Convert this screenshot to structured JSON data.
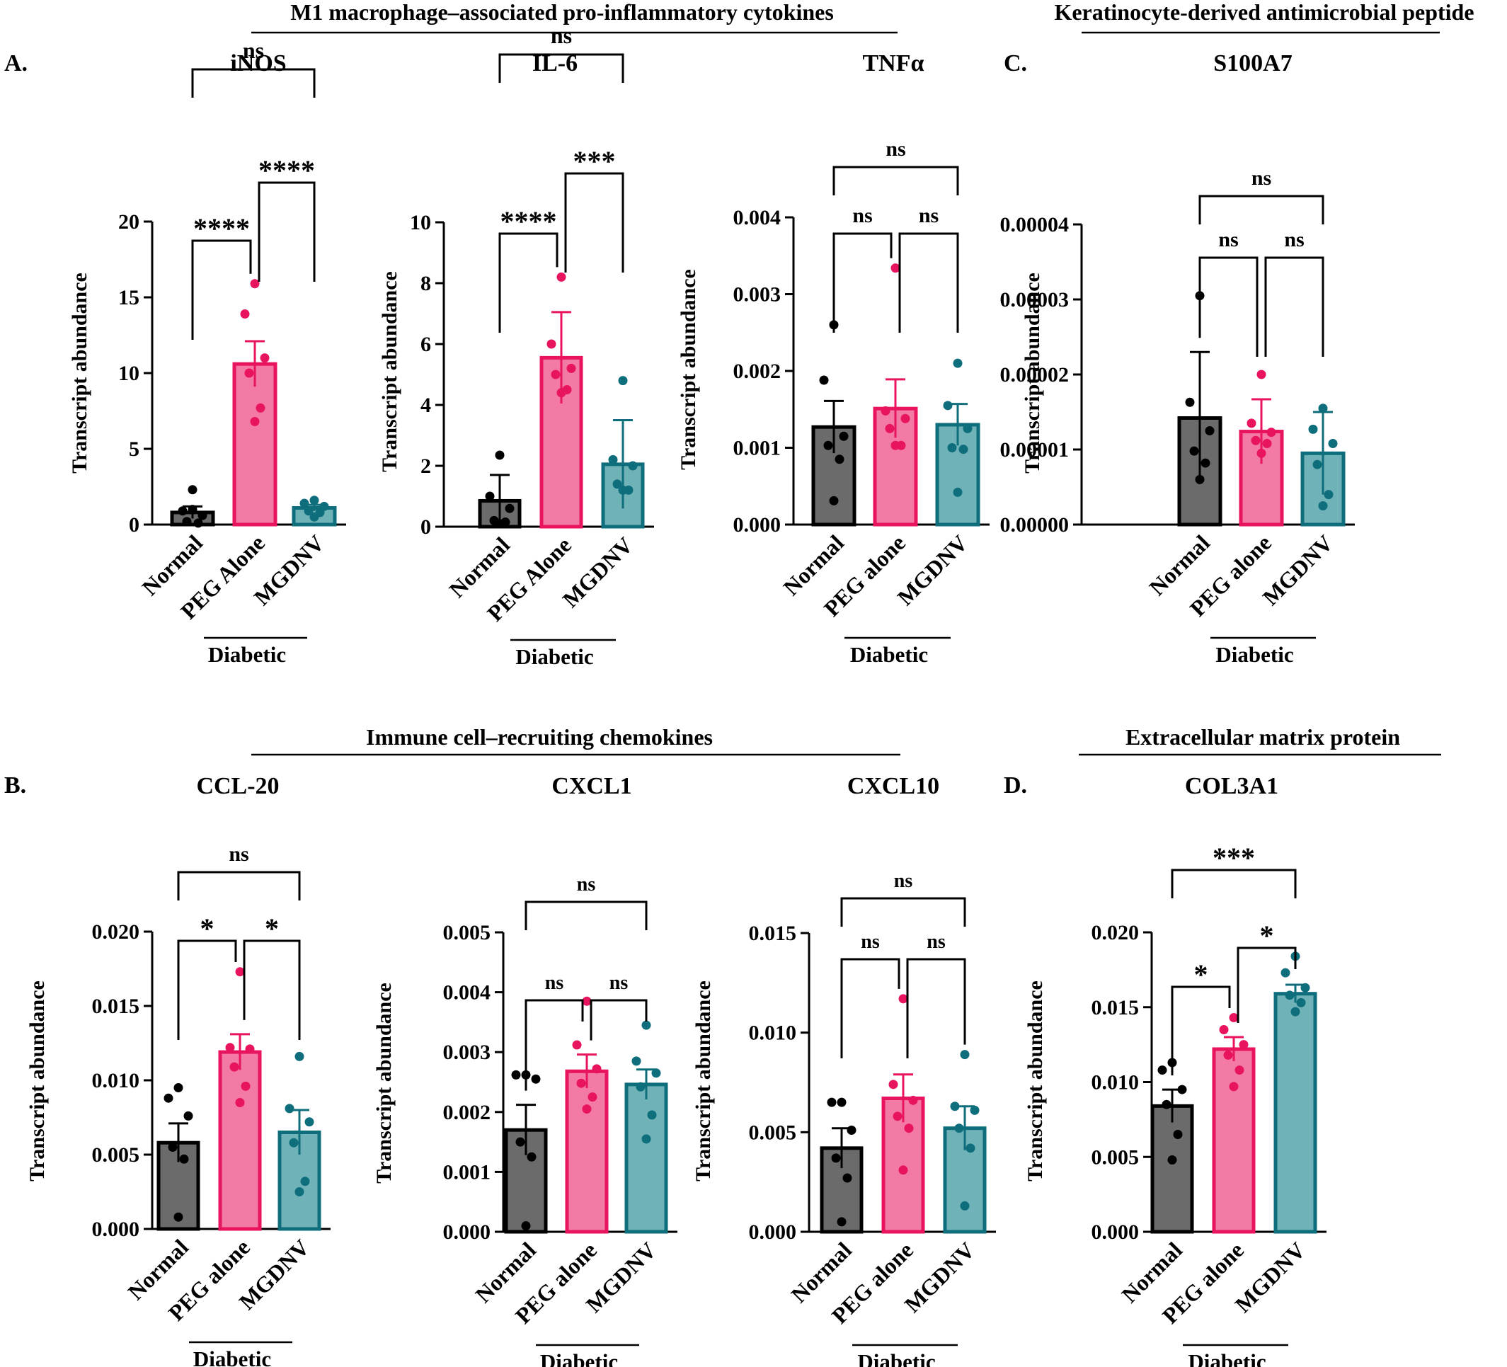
{
  "group_headers": [
    {
      "text": "M1 macrophage–associated pro-inflammatory cytokines"
    },
    {
      "text": "Keratinocyte-derived antimicrobial peptide"
    },
    {
      "text": "Immune cell–recruiting chemokines"
    },
    {
      "text": "Extracellular matrix protein"
    }
  ],
  "panel_letters": [
    "A.",
    "B.",
    "C.",
    "D."
  ],
  "colors": {
    "Normal": {
      "fill": "#6b6b6b",
      "edge": "#000000",
      "dot": "#000000"
    },
    "PEG": {
      "fill": "#f37aa5",
      "edge": "#e8145f",
      "dot": "#e8145f"
    },
    "MGDNV": {
      "fill": "#6fb3b8",
      "edge": "#0f6e7c",
      "dot": "#0f6e7c"
    }
  },
  "chart_data": [
    {
      "type": "bar",
      "title": "iNOS",
      "ylabel": "Transcript abundance",
      "categories": [
        "Normal",
        "PEG Alone",
        "MGDNV"
      ],
      "group_label": "Diabetic",
      "ylim": [
        0,
        20
      ],
      "yticks": [
        "0",
        "5",
        "10",
        "15",
        "20"
      ],
      "values": [
        0.8,
        10.6,
        1.1
      ],
      "sem": [
        0.4,
        1.5,
        0.2
      ],
      "points": [
        [
          2.3,
          0.9,
          0.6,
          0.2,
          0.1,
          1.0
        ],
        [
          15.9,
          13.9,
          11.0,
          10.0,
          7.7,
          6.8
        ],
        [
          1.6,
          1.4,
          1.2,
          0.9,
          0.8,
          0.5
        ]
      ],
      "comparisons": [
        {
          "between": [
            "Normal",
            "PEG Alone"
          ],
          "label": "****"
        },
        {
          "between": [
            "PEG Alone",
            "MGDNV"
          ],
          "label": "****"
        },
        {
          "between": [
            "Normal",
            "MGDNV"
          ],
          "label": "ns"
        }
      ]
    },
    {
      "type": "bar",
      "title": "IL-6",
      "ylabel": "Transcript abundance",
      "categories": [
        "Normal",
        "PEG Alone",
        "MGDNV"
      ],
      "group_label": "Diabetic",
      "ylim": [
        0,
        10
      ],
      "yticks": [
        "0",
        "2",
        "4",
        "6",
        "8",
        "10"
      ],
      "values": [
        0.85,
        5.55,
        2.05
      ],
      "sem": [
        0.85,
        1.5,
        1.45
      ],
      "points": [
        [
          2.35,
          1.0,
          0.6,
          0.2,
          0.15,
          0.1
        ],
        [
          8.2,
          6.0,
          5.2,
          5.0,
          4.5,
          4.4
        ],
        [
          4.8,
          2.2,
          2.0,
          1.4,
          1.2,
          1.2
        ]
      ],
      "comparisons": [
        {
          "between": [
            "Normal",
            "PEG Alone"
          ],
          "label": "****"
        },
        {
          "between": [
            "PEG Alone",
            "MGDNV"
          ],
          "label": "***"
        },
        {
          "between": [
            "Normal",
            "MGDNV"
          ],
          "label": "ns"
        }
      ]
    },
    {
      "type": "bar",
      "title": "TNFα",
      "ylabel": "Transcript abundance",
      "categories": [
        "Normal",
        "PEG alone",
        "MGDNV"
      ],
      "group_label": "Diabetic",
      "ylim": [
        0,
        0.004
      ],
      "yticks": [
        "0.000",
        "0.001",
        "0.002",
        "0.003",
        "0.004"
      ],
      "values": [
        0.00127,
        0.00151,
        0.0013
      ],
      "sem": [
        0.00034,
        0.00038,
        0.00027
      ],
      "points": [
        [
          0.0026,
          0.00188,
          0.00115,
          0.00103,
          0.00085,
          0.00031
        ],
        [
          0.00334,
          0.00148,
          0.00138,
          0.00125,
          0.00103,
          0.00103
        ],
        [
          0.0021,
          0.00155,
          0.00125,
          0.001,
          0.00098,
          0.00042
        ]
      ],
      "comparisons": [
        {
          "between": [
            "Normal",
            "PEG alone"
          ],
          "label": "ns"
        },
        {
          "between": [
            "PEG alone",
            "MGDNV"
          ],
          "label": "ns"
        },
        {
          "between": [
            "Normal",
            "MGDNV"
          ],
          "label": "ns"
        }
      ]
    },
    {
      "type": "bar",
      "title": "S100A7",
      "ylabel": "Transcript abundance",
      "categories": [
        "Normal",
        "PEG alone",
        "MGDNV"
      ],
      "group_label": "Diabetic",
      "ylim": [
        0,
        4e-05
      ],
      "yticks": [
        "0.00000",
        "0.00001",
        "0.00002",
        "0.00003",
        "0.00004"
      ],
      "values": [
        1.42e-05,
        1.24e-05,
        9.5e-06
      ],
      "sem": [
        8.8e-06,
        4.3e-06,
        5.5e-06
      ],
      "points": [
        [
          3.05e-05,
          1.63e-05,
          1.25e-05,
          9.8e-06,
          8.2e-06,
          6e-06
        ],
        [
          2e-05,
          1.35e-05,
          1.23e-05,
          1.12e-05,
          1.08e-05,
          9.5e-06
        ],
        [
          1.55e-05,
          1.27e-05,
          1.08e-05,
          8e-06,
          4e-06,
          2.5e-06
        ]
      ],
      "comparisons": [
        {
          "between": [
            "Normal",
            "PEG alone"
          ],
          "label": "ns"
        },
        {
          "between": [
            "PEG alone",
            "MGDNV"
          ],
          "label": "ns"
        },
        {
          "between": [
            "Normal",
            "MGDNV"
          ],
          "label": "ns"
        }
      ]
    },
    {
      "type": "bar",
      "title": "CCL-20",
      "ylabel": "Transcript abundance",
      "categories": [
        "Normal",
        "PEG alone",
        "MGDNV"
      ],
      "group_label": "Diabetic",
      "ylim": [
        0,
        0.02
      ],
      "yticks": [
        "0.000",
        "0.005",
        "0.010",
        "0.015",
        "0.020"
      ],
      "values": [
        0.0058,
        0.0119,
        0.0065
      ],
      "sem": [
        0.0013,
        0.0012,
        0.0015
      ],
      "points": [
        [
          0.0095,
          0.0088,
          0.0076,
          0.0055,
          0.0047,
          0.0008
        ],
        [
          0.0173,
          0.0122,
          0.0121,
          0.0109,
          0.0096,
          0.0085
        ],
        [
          0.0116,
          0.0081,
          0.0072,
          0.0058,
          0.0032,
          0.0025
        ]
      ],
      "comparisons": [
        {
          "between": [
            "Normal",
            "PEG alone"
          ],
          "label": "*"
        },
        {
          "between": [
            "PEG alone",
            "MGDNV"
          ],
          "label": "*"
        },
        {
          "between": [
            "Normal",
            "MGDNV"
          ],
          "label": "ns"
        }
      ]
    },
    {
      "type": "bar",
      "title": "CXCL1",
      "ylabel": "Transcript abundance",
      "categories": [
        "Normal",
        "PEG alone",
        "MGDNV"
      ],
      "group_label": "Diabetic",
      "ylim": [
        0,
        0.005
      ],
      "yticks": [
        "0.000",
        "0.001",
        "0.002",
        "0.003",
        "0.004",
        "0.005"
      ],
      "values": [
        0.0017,
        0.00268,
        0.00246
      ],
      "sem": [
        0.00042,
        0.00028,
        0.00025
      ],
      "points": [
        [
          0.00262,
          0.00262,
          0.00255,
          0.0015,
          0.00125,
          0.0001
        ],
        [
          0.00385,
          0.00312,
          0.00272,
          0.00248,
          0.00225,
          0.00205
        ],
        [
          0.00345,
          0.00285,
          0.00265,
          0.00242,
          0.00195,
          0.00155
        ]
      ],
      "comparisons": [
        {
          "between": [
            "Normal",
            "PEG alone"
          ],
          "label": "ns"
        },
        {
          "between": [
            "PEG alone",
            "MGDNV"
          ],
          "label": "ns"
        },
        {
          "between": [
            "Normal",
            "MGDNV"
          ],
          "label": "ns"
        }
      ]
    },
    {
      "type": "bar",
      "title": "CXCL10",
      "ylabel": "Transcript abundance",
      "categories": [
        "Normal",
        "PEG alone",
        "MGDNV"
      ],
      "group_label": "Diabetic",
      "ylim": [
        0,
        0.015
      ],
      "yticks": [
        "0.000",
        "0.005",
        "0.010",
        "0.015"
      ],
      "values": [
        0.0042,
        0.0067,
        0.0052
      ],
      "sem": [
        0.001,
        0.0012,
        0.0011
      ],
      "points": [
        [
          0.0065,
          0.0065,
          0.0051,
          0.0037,
          0.0027,
          0.0005
        ],
        [
          0.0117,
          0.0074,
          0.0066,
          0.0058,
          0.0052,
          0.0031
        ],
        [
          0.0089,
          0.0063,
          0.0061,
          0.0052,
          0.0042,
          0.0013
        ]
      ],
      "comparisons": [
        {
          "between": [
            "Normal",
            "PEG alone"
          ],
          "label": "ns"
        },
        {
          "between": [
            "PEG alone",
            "MGDNV"
          ],
          "label": "ns"
        },
        {
          "between": [
            "Normal",
            "MGDNV"
          ],
          "label": "ns"
        }
      ]
    },
    {
      "type": "bar",
      "title": "COL3A1",
      "ylabel": "Transcript abundance",
      "categories": [
        "Normal",
        "PEG alone",
        "MGDNV"
      ],
      "group_label": "Diabetic",
      "ylim": [
        0,
        0.02
      ],
      "yticks": [
        "0.000",
        "0.005",
        "0.010",
        "0.015",
        "0.020"
      ],
      "values": [
        0.0084,
        0.0122,
        0.0159
      ],
      "sem": [
        0.0011,
        0.0008,
        0.0006
      ],
      "points": [
        [
          0.0113,
          0.0108,
          0.0095,
          0.0085,
          0.0065,
          0.0048
        ],
        [
          0.0143,
          0.0135,
          0.0125,
          0.0118,
          0.0108,
          0.0097
        ],
        [
          0.0184,
          0.0173,
          0.0163,
          0.0158,
          0.0153,
          0.0147
        ]
      ],
      "comparisons": [
        {
          "between": [
            "Normal",
            "PEG alone"
          ],
          "label": "*"
        },
        {
          "between": [
            "PEG alone",
            "MGDNV"
          ],
          "label": "*"
        },
        {
          "between": [
            "Normal",
            "MGDNV"
          ],
          "label": "***"
        }
      ]
    }
  ]
}
